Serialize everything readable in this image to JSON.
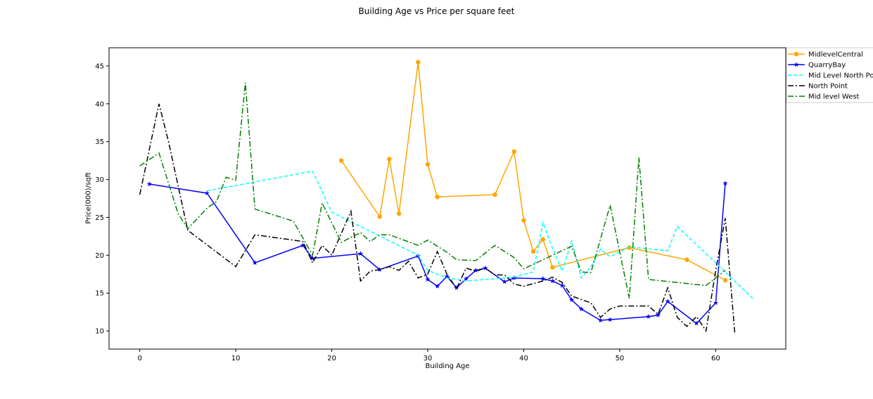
{
  "chart_data": {
    "type": "line",
    "title": "Building Age vs Price per square feet",
    "xlabel": "Building Age",
    "ylabel": "Price(000)/sqft",
    "xlim": [
      -3.2,
      67.3
    ],
    "ylim": [
      7.6,
      47.4
    ],
    "xticks": [
      0,
      10,
      20,
      30,
      40,
      50,
      60
    ],
    "yticks": [
      10,
      15,
      20,
      25,
      30,
      35,
      40,
      45
    ],
    "grid": false,
    "legend_position": "right-outside",
    "series": [
      {
        "name": "MidlevelCentral",
        "color": "#ffa500",
        "dash": "solid",
        "marker": "circle",
        "x": [
          21,
          25,
          26,
          27,
          29,
          30,
          31,
          37,
          39,
          40,
          41,
          42,
          43,
          51,
          57,
          61
        ],
        "y": [
          32.5,
          25.1,
          32.7,
          25.5,
          45.5,
          32.0,
          27.7,
          28.0,
          33.7,
          24.6,
          20.5,
          22.1,
          18.4,
          21.0,
          19.4,
          16.7
        ]
      },
      {
        "name": "QuarryBay",
        "color": "#0000ff",
        "dash": "solid",
        "marker": "star",
        "x": [
          1,
          7,
          12,
          17,
          18,
          23,
          25,
          29,
          30,
          31,
          32,
          33,
          34,
          35,
          36,
          38,
          39,
          42,
          43,
          44,
          45,
          46,
          48,
          49,
          53,
          54,
          55,
          58,
          60,
          61
        ],
        "y": [
          29.4,
          28.2,
          19.0,
          21.3,
          19.6,
          20.2,
          18.1,
          19.9,
          16.8,
          15.9,
          17.2,
          15.7,
          16.9,
          18.0,
          18.3,
          16.5,
          17.0,
          16.9,
          16.6,
          16.0,
          14.1,
          12.9,
          11.4,
          11.5,
          11.9,
          12.1,
          13.9,
          11.0,
          13.7,
          29.5
        ]
      },
      {
        "name": "Mid Level North Point",
        "color": "#00ffff",
        "dash": "dashed",
        "marker": "none",
        "x": [
          7,
          18,
          20,
          29,
          30,
          32,
          34,
          39,
          41,
          42,
          43,
          44,
          45,
          46,
          47,
          48,
          49,
          51,
          55,
          56,
          60,
          64
        ],
        "y": [
          28.5,
          31.1,
          25.7,
          20.0,
          18.0,
          17.0,
          16.6,
          17.1,
          17.8,
          24.3,
          20.9,
          17.9,
          21.9,
          17.0,
          18.5,
          20.8,
          19.8,
          21.1,
          20.6,
          23.8,
          19.0,
          14.1
        ]
      },
      {
        "name": "North Point",
        "color": "#000000",
        "dash": "dashdot",
        "marker": "none",
        "x": [
          0,
          2,
          3,
          5,
          10,
          12,
          16,
          17,
          18,
          19,
          20,
          22,
          23,
          24,
          25,
          26,
          27,
          28,
          29,
          30,
          31,
          32,
          33,
          34,
          35,
          36,
          37,
          38,
          39,
          40,
          42,
          43,
          44,
          45,
          47,
          48,
          49,
          50,
          53,
          54,
          55,
          56,
          57,
          58,
          59,
          60,
          61,
          62
        ],
        "y": [
          28.0,
          40.0,
          35.0,
          23.3,
          18.5,
          22.7,
          22.0,
          21.8,
          19.0,
          21.3,
          20.0,
          25.8,
          16.6,
          17.9,
          18.1,
          18.5,
          18.0,
          19.2,
          17.0,
          17.5,
          20.5,
          17.5,
          15.6,
          18.3,
          17.9,
          18.3,
          17.4,
          17.4,
          16.2,
          15.9,
          16.6,
          17.1,
          16.4,
          14.6,
          13.7,
          11.8,
          12.9,
          13.3,
          13.3,
          12.2,
          15.7,
          11.8,
          10.6,
          11.9,
          10.0,
          18.0,
          24.9,
          9.5
        ]
      },
      {
        "name": "Mid level West",
        "color": "#008000",
        "dash": "dashdot",
        "marker": "none",
        "x": [
          0,
          2,
          4,
          5,
          7,
          8,
          9,
          10,
          11,
          12,
          16,
          18,
          19,
          21,
          23,
          24,
          25,
          26,
          29,
          30,
          32,
          33,
          35,
          37,
          39,
          40,
          45,
          46,
          47,
          49,
          51,
          52,
          53,
          59,
          61
        ],
        "y": [
          31.8,
          33.5,
          25.5,
          23.5,
          26.2,
          27.1,
          30.3,
          29.9,
          42.8,
          26.1,
          24.5,
          20.0,
          26.9,
          21.7,
          23.0,
          21.8,
          22.7,
          22.7,
          21.3,
          22.0,
          20.4,
          19.4,
          19.3,
          21.3,
          19.7,
          18.2,
          21.2,
          17.8,
          17.7,
          26.6,
          14.3,
          32.9,
          16.8,
          16.0,
          18.0
        ]
      }
    ]
  }
}
